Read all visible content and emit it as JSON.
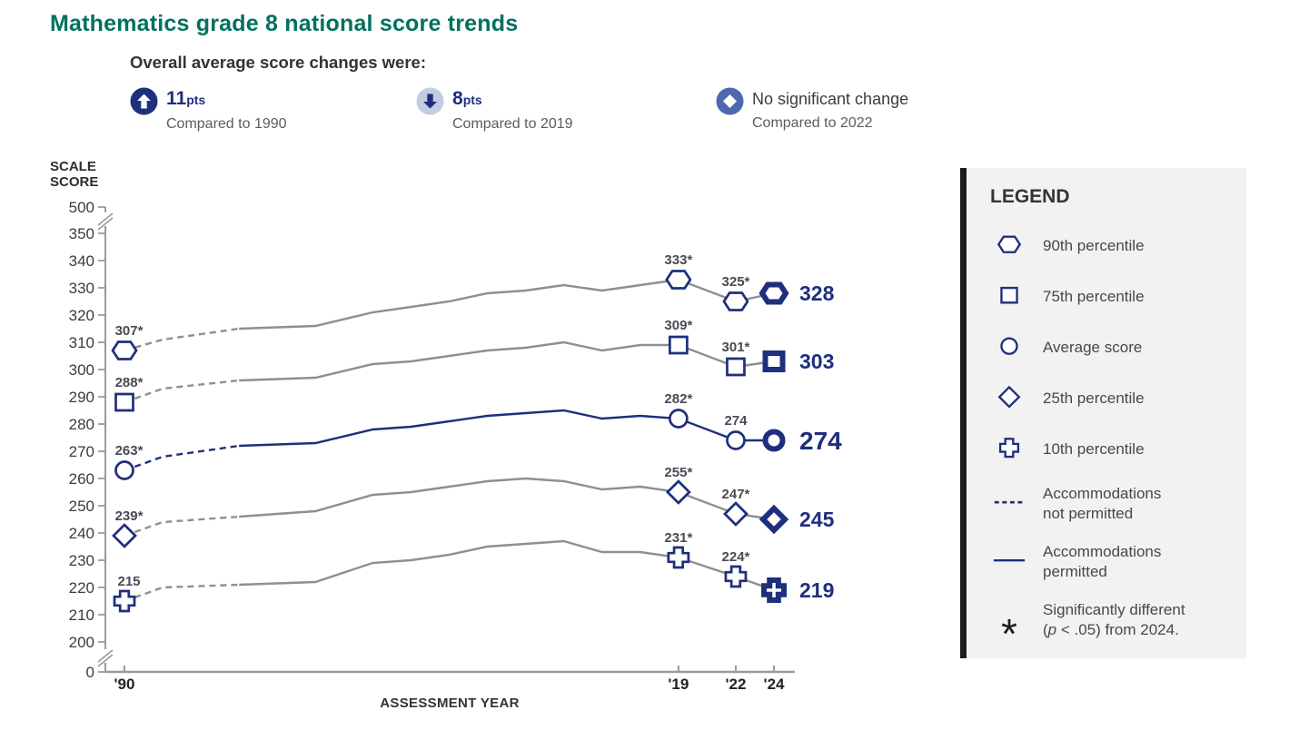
{
  "title": "Mathematics grade 8 national score trends",
  "header": {
    "subtitle": "Overall average score changes were:",
    "indicators": [
      {
        "icon": "increase-icon",
        "value": "11",
        "unit": "pts",
        "caption": "Compared to 1990"
      },
      {
        "icon": "decrease-icon",
        "value": "8",
        "unit": "pts",
        "caption": "Compared to 2019"
      },
      {
        "icon": "no-change-icon",
        "label": "No significant change",
        "caption": "Compared to 2022"
      }
    ]
  },
  "axes": {
    "y_title_line1": "SCALE",
    "y_title_line2": "SCORE",
    "x_title": "ASSESSMENT YEAR"
  },
  "chart_data": {
    "type": "line",
    "title": "Mathematics grade 8 national score trends",
    "xlabel": "ASSESSMENT YEAR",
    "ylabel": "SCALE SCORE",
    "ylim": [
      0,
      500
    ],
    "y_ticks": [
      500,
      350,
      340,
      330,
      320,
      310,
      300,
      290,
      280,
      270,
      260,
      250,
      240,
      230,
      220,
      210,
      200,
      0
    ],
    "y_axis_breaks": "between 500 and 350, and between 200 and 0",
    "x_tick_labels": [
      {
        "year": 1990,
        "label": "'90"
      },
      {
        "year": 2019,
        "label": "'19"
      },
      {
        "year": 2022,
        "label": "'22"
      },
      {
        "year": 2024,
        "label": "'24"
      }
    ],
    "x_years": [
      1990,
      1992,
      1996,
      2000,
      2003,
      2005,
      2007,
      2009,
      2011,
      2013,
      2015,
      2017,
      2019,
      2022,
      2024
    ],
    "accommodations_transition_year": 1996,
    "marker_years": [
      1990,
      2019,
      2022,
      2024
    ],
    "series": [
      {
        "name": "90th percentile",
        "marker": "hexagon",
        "line_color": "gray",
        "values": [
          307,
          311,
          315,
          316,
          321,
          323,
          325,
          328,
          329,
          331,
          329,
          331,
          333,
          325,
          328
        ],
        "point_labels": {
          "1990": "307*",
          "2019": "333*",
          "2022": "325*"
        },
        "final_label": "328"
      },
      {
        "name": "75th percentile",
        "marker": "square",
        "line_color": "gray",
        "values": [
          288,
          293,
          296,
          297,
          302,
          303,
          305,
          307,
          308,
          310,
          307,
          309,
          309,
          301,
          303
        ],
        "point_labels": {
          "1990": "288*",
          "2019": "309*",
          "2022": "301*"
        },
        "final_label": "303"
      },
      {
        "name": "Average score",
        "marker": "circle",
        "line_color": "navy",
        "emphasis": true,
        "values": [
          263,
          268,
          272,
          273,
          278,
          279,
          281,
          283,
          284,
          285,
          282,
          283,
          282,
          274,
          274
        ],
        "point_labels": {
          "1990": "263*",
          "2019": "282*",
          "2022": "274"
        },
        "final_label": "274"
      },
      {
        "name": "25th percentile",
        "marker": "diamond",
        "line_color": "gray",
        "values": [
          239,
          244,
          246,
          248,
          254,
          255,
          257,
          259,
          260,
          259,
          256,
          257,
          255,
          247,
          245
        ],
        "point_labels": {
          "1990": "239*",
          "2019": "255*",
          "2022": "247*"
        },
        "final_label": "245"
      },
      {
        "name": "10th percentile",
        "marker": "plus",
        "line_color": "gray",
        "values": [
          215,
          220,
          221,
          222,
          229,
          230,
          232,
          235,
          236,
          237,
          233,
          233,
          231,
          224,
          219
        ],
        "point_labels": {
          "1990": "215",
          "2019": "231*",
          "2022": "224*"
        },
        "final_label": "219"
      }
    ]
  },
  "legend": {
    "title": "LEGEND",
    "items": [
      {
        "icon": "hexagon",
        "label": "90th percentile"
      },
      {
        "icon": "square",
        "label": "75th percentile"
      },
      {
        "icon": "circle",
        "label": "Average score"
      },
      {
        "icon": "diamond",
        "label": "25th percentile"
      },
      {
        "icon": "plus",
        "label": "10th percentile"
      },
      {
        "icon": "dashed-line",
        "lines": [
          "Accommodations",
          "not permitted"
        ]
      },
      {
        "icon": "solid-line",
        "lines": [
          "Accommodations",
          "permitted"
        ]
      },
      {
        "icon": "asterisk",
        "lines": [
          "Significantly different",
          {
            "pre": "(",
            "italic": "p",
            "post": " < .05) from 2024."
          }
        ]
      }
    ]
  },
  "colors": {
    "navy": "#1e2f7d",
    "line_gray": "#8f8f8f",
    "axis_gray": "#9a9a9a",
    "title_teal": "#00715e",
    "heading_text": "#333333",
    "caption_gray": "#5c5c5c",
    "legend_text": "#47474d",
    "panel_bg": "#f2f2f2",
    "panel_bar": "#1c1c1c",
    "decrease_icon_bg": "#c3cce3",
    "no_change_icon_bg": "#4c69ab"
  }
}
